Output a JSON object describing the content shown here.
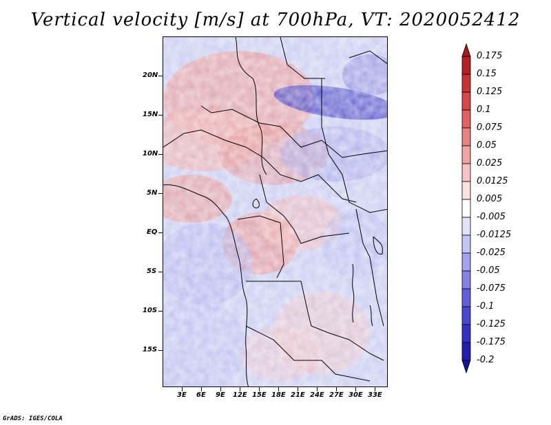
{
  "title": "Vertical velocity [m/s] at 700hPa, VT: 2020052412",
  "credit": "GrADS: IGES/COLA",
  "lat_labels": [
    "20N",
    "15N",
    "10N",
    "5N",
    "EQ",
    "5S",
    "10S",
    "15S"
  ],
  "lon_labels": [
    "3E",
    "6E",
    "9E",
    "12E",
    "15E",
    "18E",
    "21E",
    "24E",
    "27E",
    "30E",
    "33E"
  ],
  "colorbar": {
    "levels": [
      "0.175",
      "0.15",
      "0.125",
      "0.1",
      "0.075",
      "0.05",
      "0.025",
      "0.0125",
      "0.005",
      "-0.005",
      "-0.0125",
      "-0.025",
      "-0.05",
      "-0.075",
      "-0.1",
      "-0.125",
      "-0.175",
      "-0.2"
    ],
    "colors": [
      "#a01a1a",
      "#b62025",
      "#c93232",
      "#d84747",
      "#e26060",
      "#ea8282",
      "#f1a2a2",
      "#f7c4c4",
      "#fbe1e1",
      "#ffffff",
      "#e1e1fb",
      "#c4c4f5",
      "#a2a2ee",
      "#8282e6",
      "#6060dd",
      "#4747d2",
      "#3232c4",
      "#2020b0",
      "#14149a"
    ]
  }
}
